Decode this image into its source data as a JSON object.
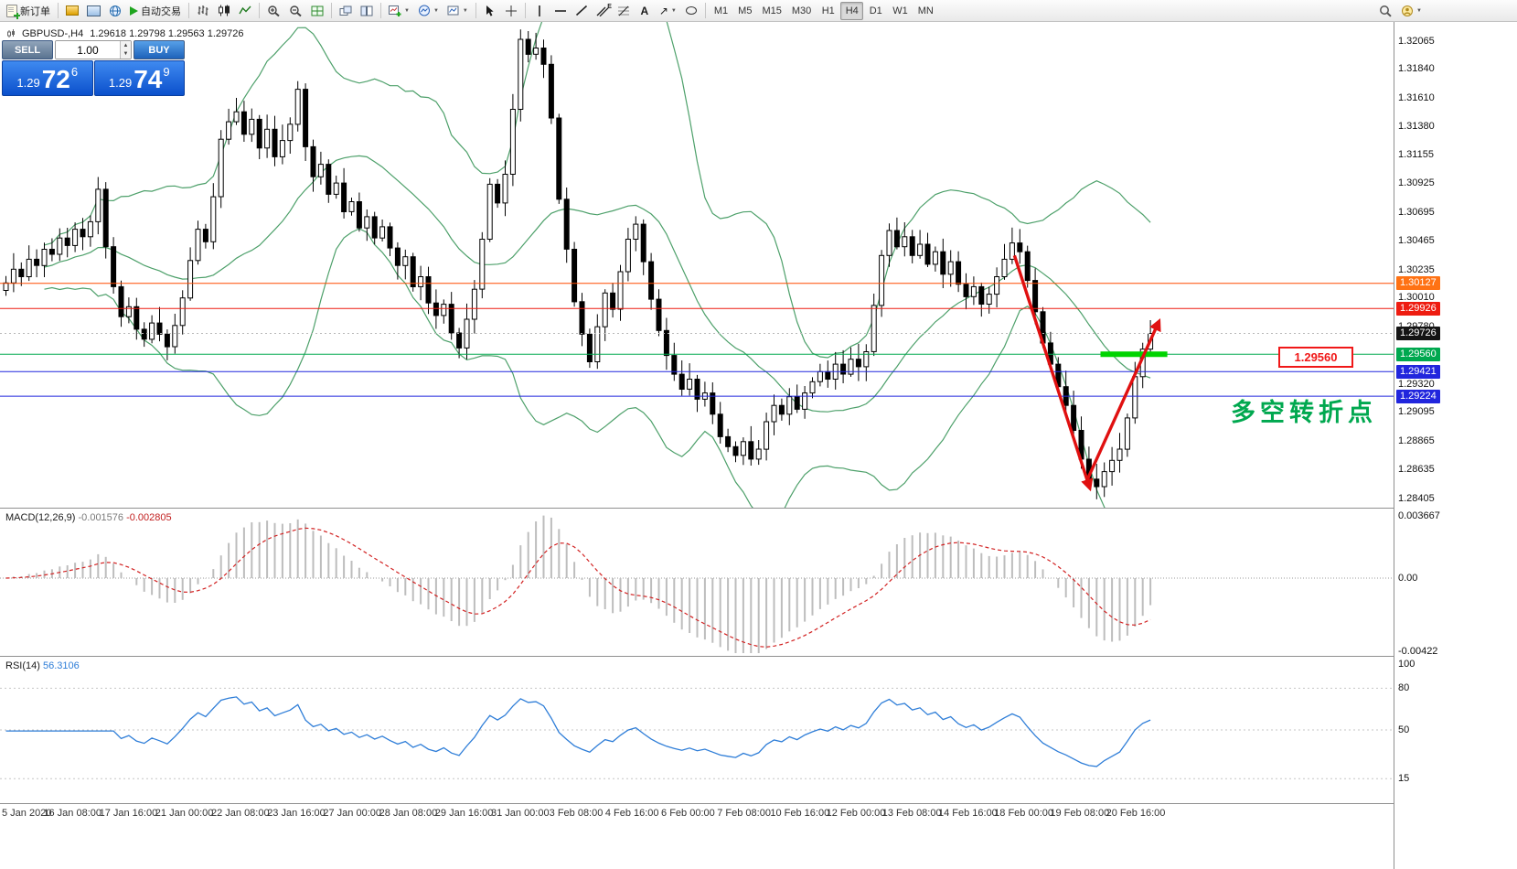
{
  "toolbar": {
    "new_order": "新订单",
    "auto_trading": "自动交易",
    "timeframes": [
      "M1",
      "M5",
      "M15",
      "M30",
      "H1",
      "H4",
      "D1",
      "W1",
      "MN"
    ],
    "active_timeframe": "H4"
  },
  "icons": {
    "caret_down": "▼",
    "caret_up": "▲",
    "text_tool": "A",
    "arrow_tool": "↗",
    "channel_letter": "E"
  },
  "quote_panel": {
    "sell_label": "SELL",
    "buy_label": "BUY",
    "volume": "1.00",
    "sell_price": {
      "base": "1.29",
      "big": "72",
      "sup": "6"
    },
    "buy_price": {
      "base": "1.29",
      "big": "74",
      "sup": "9"
    }
  },
  "symbol_header": {
    "name": "GBPUSD-,H4",
    "ohlc": "1.29618 1.29798 1.29563 1.29726"
  },
  "chart_data": {
    "type": "candlestick",
    "symbol": "GBPUSD-",
    "timeframe": "H4",
    "title": "GBPUSD-,H4",
    "ohlc_header": {
      "open": "1.29618",
      "high": "1.29798",
      "low": "1.29563",
      "close": "1.29726"
    },
    "closes": [
      1.3013,
      1.3024,
      1.3018,
      1.3032,
      1.3027,
      1.304,
      1.3036,
      1.3049,
      1.3043,
      1.3056,
      1.305,
      1.3062,
      1.3088,
      1.3042,
      1.301,
      1.2986,
      1.2994,
      1.2976,
      1.2968,
      1.2981,
      1.2972,
      1.2962,
      1.2979,
      1.3001,
      1.3031,
      1.3056,
      1.3046,
      1.3082,
      1.3128,
      1.3142,
      1.315,
      1.3132,
      1.3144,
      1.3121,
      1.3136,
      1.3114,
      1.3127,
      1.314,
      1.3168,
      1.3122,
      1.3098,
      1.3108,
      1.3084,
      1.3093,
      1.307,
      1.3078,
      1.3057,
      1.3066,
      1.3049,
      1.3058,
      1.3041,
      1.3027,
      1.3034,
      1.301,
      1.3018,
      1.2997,
      1.2987,
      1.2996,
      1.2973,
      1.2961,
      1.2984,
      1.3008,
      1.3048,
      1.3092,
      1.3077,
      1.31,
      1.3152,
      1.3208,
      1.3196,
      1.3201,
      1.3188,
      1.3145,
      1.308,
      1.304,
      1.2998,
      1.2972,
      1.295,
      1.2978,
      1.3005,
      1.2992,
      1.3022,
      1.3048,
      1.306,
      1.303,
      1.3,
      1.2975,
      1.2955,
      1.294,
      1.2928,
      1.2936,
      1.292,
      1.2925,
      1.2908,
      1.289,
      1.2882,
      1.2875,
      1.2886,
      1.2872,
      1.288,
      1.2902,
      1.2915,
      1.2908,
      1.2922,
      1.2912,
      1.2925,
      1.2934,
      1.2942,
      1.2936,
      1.2948,
      1.294,
      1.2952,
      1.2946,
      1.2958,
      1.2995,
      1.3035,
      1.3055,
      1.3042,
      1.305,
      1.3035,
      1.3044,
      1.3028,
      1.3038,
      1.302,
      1.303,
      1.3012,
      1.3002,
      1.301,
      1.2996,
      1.3004,
      1.3018,
      1.3032,
      1.3045,
      1.3038,
      1.3015,
      1.299,
      1.2965,
      1.2948,
      1.293,
      1.2915,
      1.2895,
      1.2872,
      1.2856,
      1.285,
      1.2862,
      1.2871,
      1.288,
      1.2905,
      1.2938,
      1.296,
      1.29726
    ],
    "bollinger": {
      "period": 20,
      "deviation": 2,
      "color": "#4da06a"
    },
    "price_axis": {
      "ticks": [
        "1.32065",
        "1.31840",
        "1.31610",
        "1.31380",
        "1.31155",
        "1.30925",
        "1.30695",
        "1.30465",
        "1.30235",
        "1.30010",
        "1.29780",
        "1.29320",
        "1.29095",
        "1.28865",
        "1.28635",
        "1.28405"
      ]
    },
    "levels": [
      {
        "text": "1.30127",
        "value": 1.30127,
        "box": "#ff7214",
        "line": "#ff4a00"
      },
      {
        "text": "1.29926",
        "value": 1.29926,
        "box": "#ee1c10",
        "line": "#ee1c10"
      },
      {
        "text": "1.29726",
        "value": 1.29726,
        "box": "#141414",
        "line": "#b8b8b8",
        "dash": "2 3"
      },
      {
        "text": "1.29560",
        "value": 1.2956,
        "box": "#00a84f",
        "line": "#00a84f"
      },
      {
        "text": "1.29421",
        "value": 1.29421,
        "box": "#2126dd",
        "line": "#2126dd"
      },
      {
        "text": "1.29224",
        "value": 1.29224,
        "box": "#2126dd",
        "line": "#2126dd"
      }
    ],
    "annotations": {
      "arrow_down": {
        "from_t": 131.3,
        "from_p": 1.3035,
        "to_t": 141.1,
        "to_p": 1.2849,
        "color": "#e01010"
      },
      "arrow_up": {
        "from_t": 140.6,
        "from_p": 1.2853,
        "to_t": 150.1,
        "to_p": 1.2982,
        "color": "#e01010"
      },
      "support_segment": {
        "from_t": 142.5,
        "to_t": 151.2,
        "p": 1.2956,
        "color": "#00d400"
      },
      "price_tag": {
        "text": "1.29560",
        "color": "#f01818"
      },
      "note": {
        "text": "多空转折点",
        "color": "#00a84f"
      }
    },
    "macd": {
      "label": "MACD(12,26,9)",
      "value_main": "-0.001576",
      "value_signal": "-0.002805",
      "axis_labels": [
        "0.003667",
        "0.00",
        "-0.00422"
      ]
    },
    "rsi": {
      "label": "RSI(14)",
      "value": "56.3106",
      "axis_labels": [
        "100",
        "80",
        "50",
        "15"
      ],
      "levels": [
        80,
        50,
        15
      ]
    },
    "time_axis": [
      "5 Jan 2020",
      "16 Jan 08:00",
      "17 Jan 16:00",
      "21 Jan 00:00",
      "22 Jan 08:00",
      "23 Jan 16:00",
      "27 Jan 00:00",
      "28 Jan 08:00",
      "29 Jan 16:00",
      "31 Jan 00:00",
      "3 Feb 08:00",
      "4 Feb 16:00",
      "6 Feb 00:00",
      "7 Feb 08:00",
      "10 Feb 16:00",
      "12 Feb 00:00",
      "13 Feb 08:00",
      "14 Feb 16:00",
      "18 Feb 00:00",
      "19 Feb 08:00",
      "20 Feb 16:00"
    ]
  }
}
